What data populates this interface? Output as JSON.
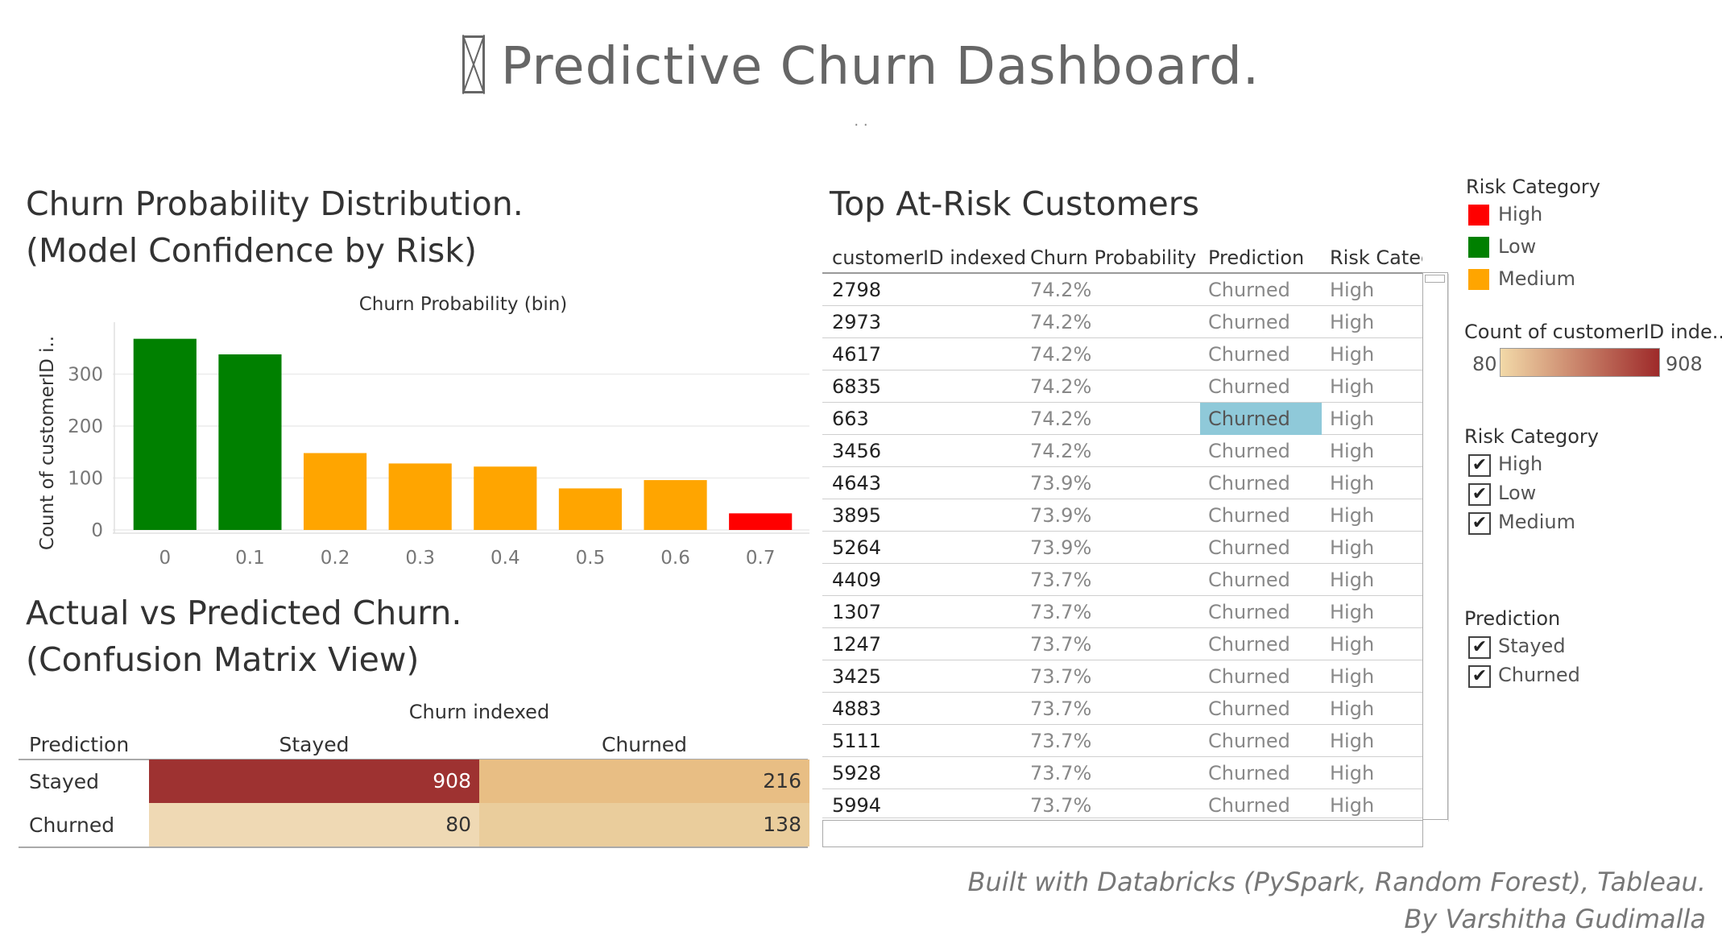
{
  "header": {
    "title": "Predictive Churn Dashboard.",
    "dots": ". ."
  },
  "histogram": {
    "title_line1": "Churn Probability Distribution.",
    "title_line2": " (Model Confidence by Risk)"
  },
  "chart_data": {
    "type": "bar",
    "title": "Churn Probability (bin)",
    "xlabel": "Churn Probability (bin)",
    "ylabel": "Count of customerID i..",
    "categories": [
      "0",
      "0.1",
      "0.2",
      "0.3",
      "0.4",
      "0.5",
      "0.6",
      "0.7"
    ],
    "values": [
      368,
      338,
      148,
      128,
      122,
      80,
      96,
      32
    ],
    "risk": [
      "Low",
      "Low",
      "Medium",
      "Medium",
      "Medium",
      "Medium",
      "Medium",
      "High"
    ],
    "colors": {
      "Low": "#008000",
      "Medium": "#FFA500",
      "High": "#FF0000"
    },
    "ylim": [
      0,
      400
    ],
    "yticks": [
      0,
      100,
      200,
      300
    ],
    "grid": true
  },
  "confusion": {
    "title_line1": "Actual vs Predicted Churn.",
    "title_line2": "(Confusion Matrix View)",
    "column_field": "Churn indexed",
    "row_field": "Prediction",
    "columns": [
      "Stayed",
      "Churned"
    ],
    "rows": [
      {
        "label": "Stayed",
        "values": [
          "908",
          "216"
        ],
        "colors": [
          "#9E3231",
          "#E8BE84"
        ]
      },
      {
        "label": "Churned",
        "values": [
          "80",
          "138"
        ],
        "colors": [
          "#EFD9B4",
          "#EACD9C"
        ]
      }
    ]
  },
  "table": {
    "title": "Top At-Risk Customers",
    "headers": [
      "customerID indexed",
      "Churn Probability",
      "Prediction",
      "Risk Categ"
    ],
    "rows": [
      [
        "2798",
        "74.2%",
        "Churned",
        "High"
      ],
      [
        "2973",
        "74.2%",
        "Churned",
        "High"
      ],
      [
        "4617",
        "74.2%",
        "Churned",
        "High"
      ],
      [
        "6835",
        "74.2%",
        "Churned",
        "High"
      ],
      [
        "663",
        "74.2%",
        "Churned",
        "High"
      ],
      [
        "3456",
        "74.2%",
        "Churned",
        "High"
      ],
      [
        "4643",
        "73.9%",
        "Churned",
        "High"
      ],
      [
        "3895",
        "73.9%",
        "Churned",
        "High"
      ],
      [
        "5264",
        "73.9%",
        "Churned",
        "High"
      ],
      [
        "4409",
        "73.7%",
        "Churned",
        "High"
      ],
      [
        "1307",
        "73.7%",
        "Churned",
        "High"
      ],
      [
        "1247",
        "73.7%",
        "Churned",
        "High"
      ],
      [
        "3425",
        "73.7%",
        "Churned",
        "High"
      ],
      [
        "4883",
        "73.7%",
        "Churned",
        "High"
      ],
      [
        "5111",
        "73.7%",
        "Churned",
        "High"
      ],
      [
        "5928",
        "73.7%",
        "Churned",
        "High"
      ],
      [
        "5994",
        "73.7%",
        "Churned",
        "High"
      ]
    ],
    "selected_row": 4
  },
  "legend_color": {
    "title": "Risk Category",
    "items": [
      {
        "label": "High",
        "color": "#FF0000"
      },
      {
        "label": "Low",
        "color": "#008000"
      },
      {
        "label": "Medium",
        "color": "#FFA500"
      }
    ]
  },
  "legend_count": {
    "title": "Count of customerID inde..",
    "min": "80",
    "max": "908",
    "gradient_start": "#F2D9A8",
    "gradient_end": "#9E2A2A"
  },
  "filter_risk": {
    "title": "Risk Category",
    "items": [
      "High",
      "Low",
      "Medium"
    ],
    "check": "✔"
  },
  "filter_prediction": {
    "title": "Prediction",
    "items": [
      "Stayed",
      "Churned"
    ],
    "check": "✔"
  },
  "footer": {
    "line1": "Built with Databricks (PySpark, Random Forest), Tableau.",
    "line2": "By Varshitha Gudimalla"
  }
}
